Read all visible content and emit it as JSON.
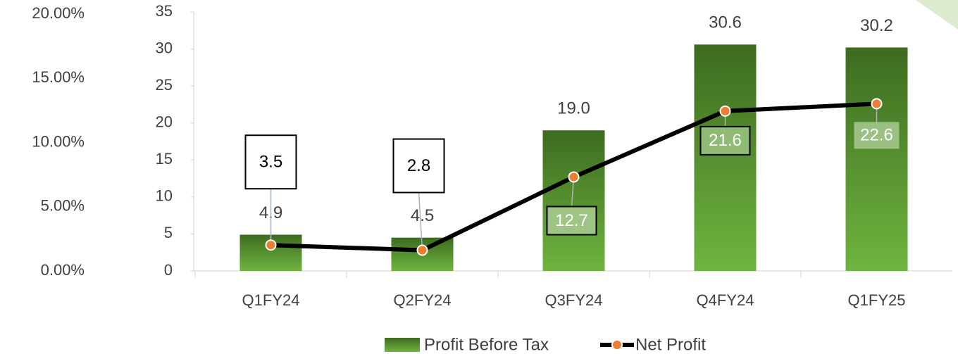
{
  "chart_data": {
    "type": "bar",
    "categories": [
      "Q1FY24",
      "Q2FY24",
      "Q3FY24",
      "Q4FY24",
      "Q1FY25"
    ],
    "series": [
      {
        "name": "Profit Before Tax",
        "color": "#5a9a30",
        "values": [
          4.9,
          4.5,
          19.0,
          30.6,
          30.2
        ],
        "value_labels": [
          "4.9",
          "4.5",
          "19.0",
          "30.6",
          "30.2"
        ]
      },
      {
        "name": "Net Profit",
        "type": "line",
        "color": "#000000",
        "marker_color": "#ed7d31",
        "values": [
          3.5,
          2.8,
          12.7,
          21.6,
          22.6
        ],
        "value_labels": [
          "3.5",
          "2.8",
          "12.7",
          "21.6",
          "22.6"
        ]
      }
    ],
    "ylim": [
      0,
      35
    ],
    "yticks": [
      0,
      5,
      10,
      15,
      20,
      25,
      30,
      35
    ],
    "y2lim": [
      0,
      20
    ],
    "y2ticks": [
      {
        "value": 0,
        "label": "0.00%"
      },
      {
        "value": 5,
        "label": "5.00%"
      },
      {
        "value": 10,
        "label": "10.00%"
      },
      {
        "value": 15,
        "label": "15.00%"
      },
      {
        "value": 20,
        "label": "20.00%"
      }
    ],
    "legend": "bottom"
  }
}
